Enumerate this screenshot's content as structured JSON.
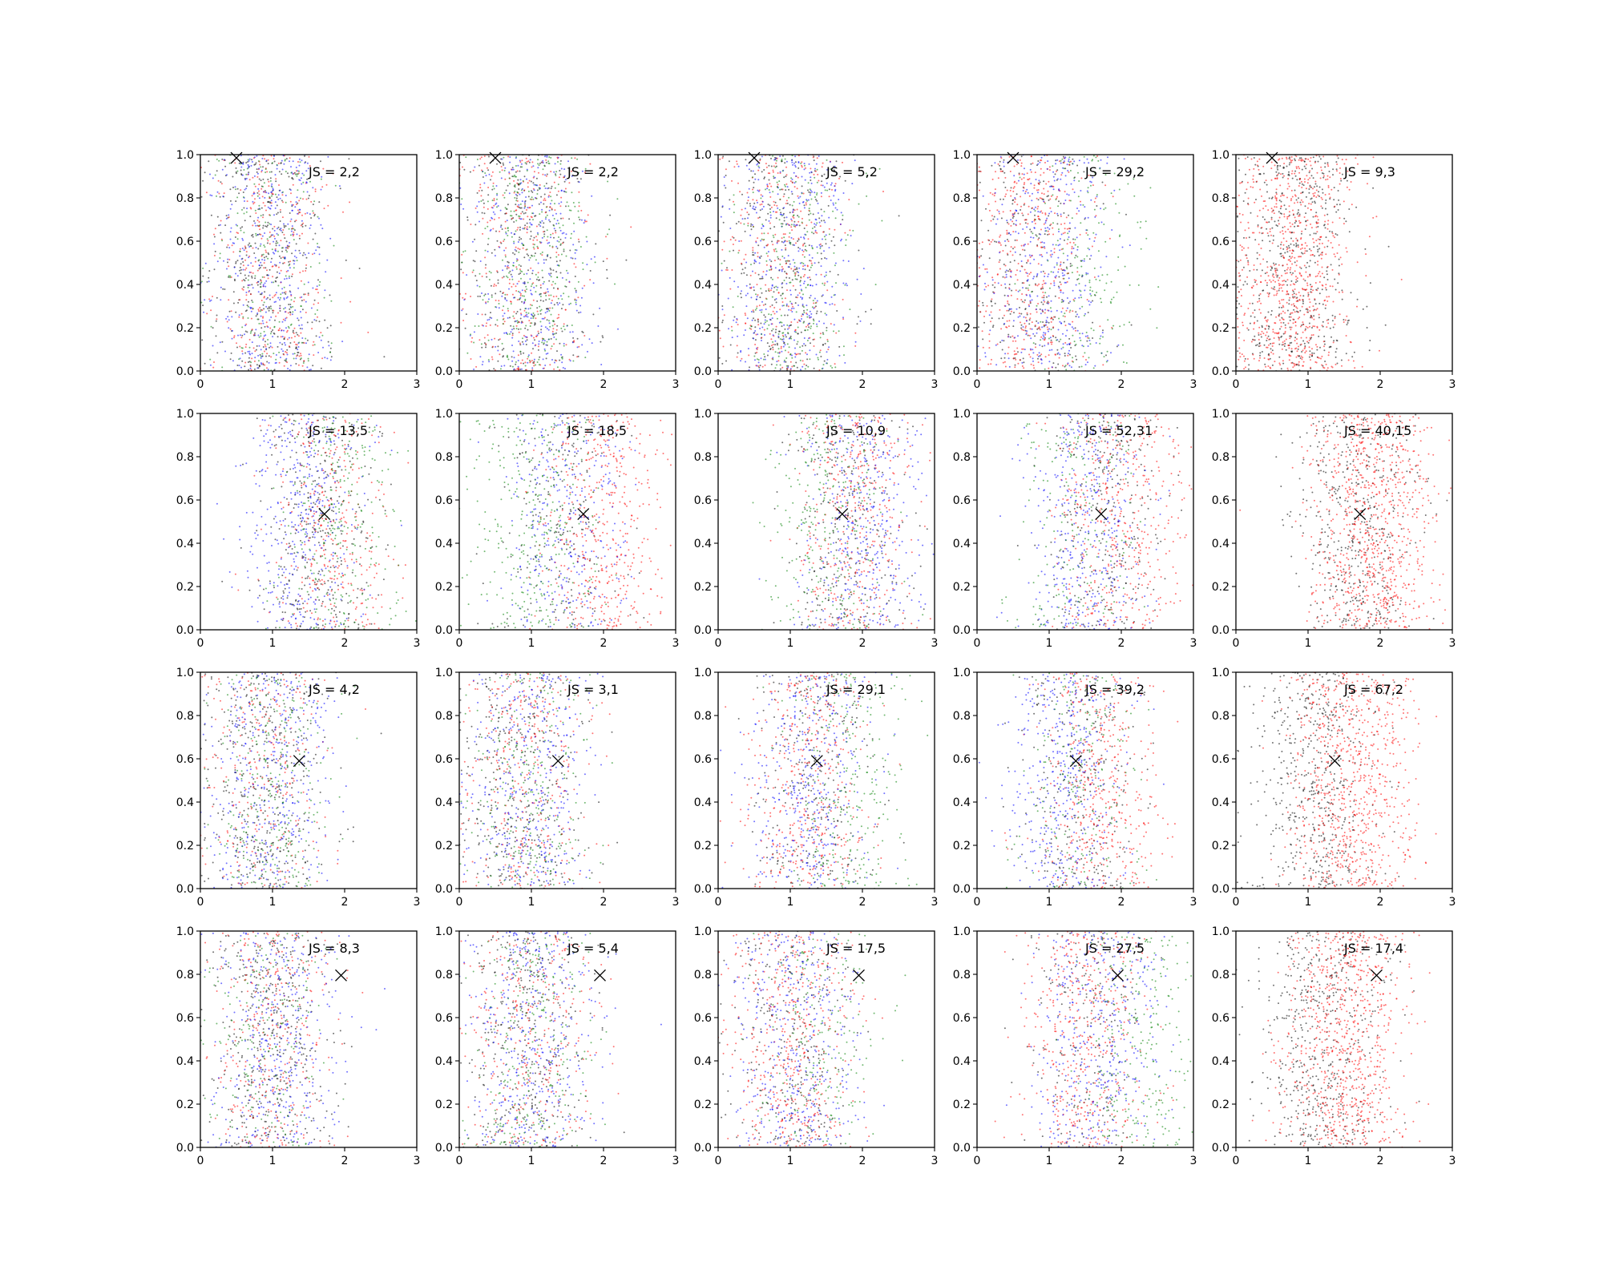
{
  "chart_data": {
    "type": "scatter",
    "rows": 4,
    "cols": 5,
    "xlim": [
      0,
      3
    ],
    "ylim": [
      0,
      1
    ],
    "xticks": [
      "0",
      "1",
      "2",
      "3"
    ],
    "yticks": [
      "0.0",
      "0.2",
      "0.4",
      "0.6",
      "0.8",
      "1.0"
    ],
    "grid": false,
    "legend": "none",
    "series_colors": {
      "black": "#000000",
      "red": "#ff0000",
      "blue": "#0000ff",
      "green": "#008000"
    },
    "marker_color": "#000000",
    "panels": [
      {
        "label": "JS = 2,2",
        "marker": [
          0.5,
          0.985
        ],
        "x_center": [
          0.95,
          0.95,
          0.95,
          0.95
        ],
        "weights": [
          0.3,
          0.25,
          0.3,
          0.15
        ]
      },
      {
        "label": "JS = 2,2",
        "marker": [
          0.5,
          0.985
        ],
        "x_center": [
          0.95,
          0.95,
          1.0,
          1.0
        ],
        "weights": [
          0.25,
          0.25,
          0.25,
          0.25
        ]
      },
      {
        "label": "JS = 5,2",
        "marker": [
          0.5,
          0.985
        ],
        "x_center": [
          0.9,
          0.9,
          1.0,
          1.1
        ],
        "weights": [
          0.25,
          0.25,
          0.3,
          0.2
        ]
      },
      {
        "label": "JS = 29,2",
        "marker": [
          0.5,
          0.985
        ],
        "x_center": [
          0.8,
          0.7,
          1.0,
          1.5
        ],
        "weights": [
          0.2,
          0.35,
          0.3,
          0.15
        ]
      },
      {
        "label": "JS = 9,3",
        "marker": [
          0.5,
          0.985
        ],
        "x_center": [
          0.8,
          0.8,
          0.8,
          0.8
        ],
        "weights": [
          0.4,
          0.6,
          0.0,
          0.0
        ]
      },
      {
        "label": "JS = 13,5",
        "marker": [
          1.72,
          0.535
        ],
        "x_center": [
          1.6,
          1.8,
          1.4,
          1.9
        ],
        "weights": [
          0.25,
          0.25,
          0.3,
          0.2
        ]
      },
      {
        "label": "JS = 18,5",
        "marker": [
          1.72,
          0.535
        ],
        "x_center": [
          1.4,
          2.0,
          1.5,
          1.0
        ],
        "weights": [
          0.15,
          0.35,
          0.25,
          0.25
        ]
      },
      {
        "label": "JS = 10,9",
        "marker": [
          1.72,
          0.535
        ],
        "x_center": [
          1.8,
          1.9,
          2.0,
          1.5
        ],
        "weights": [
          0.2,
          0.3,
          0.3,
          0.2
        ]
      },
      {
        "label": "JS = 52,31",
        "marker": [
          1.72,
          0.535
        ],
        "x_center": [
          1.8,
          2.0,
          1.5,
          1.3
        ],
        "weights": [
          0.2,
          0.35,
          0.3,
          0.15
        ]
      },
      {
        "label": "JS = 40,15",
        "marker": [
          1.72,
          0.535
        ],
        "x_center": [
          1.7,
          1.9,
          1.9,
          1.9
        ],
        "weights": [
          0.35,
          0.65,
          0.0,
          0.0
        ]
      },
      {
        "label": "JS = 4,2",
        "marker": [
          1.37,
          0.59
        ],
        "x_center": [
          0.9,
          0.9,
          1.0,
          1.0
        ],
        "weights": [
          0.3,
          0.2,
          0.3,
          0.2
        ]
      },
      {
        "label": "JS = 3,1",
        "marker": [
          1.37,
          0.59
        ],
        "x_center": [
          0.85,
          0.9,
          0.95,
          1.0
        ],
        "weights": [
          0.25,
          0.25,
          0.3,
          0.2
        ]
      },
      {
        "label": "JS = 29,1",
        "marker": [
          1.37,
          0.59
        ],
        "x_center": [
          1.3,
          1.2,
          1.3,
          1.8
        ],
        "weights": [
          0.2,
          0.3,
          0.3,
          0.2
        ]
      },
      {
        "label": "JS = 39,2",
        "marker": [
          1.37,
          0.59
        ],
        "x_center": [
          1.4,
          1.7,
          1.2,
          1.4
        ],
        "weights": [
          0.2,
          0.35,
          0.3,
          0.15
        ]
      },
      {
        "label": "JS = 67,2",
        "marker": [
          1.37,
          0.59
        ],
        "x_center": [
          1.1,
          1.6,
          1.6,
          1.6
        ],
        "weights": [
          0.4,
          0.6,
          0.0,
          0.0
        ]
      },
      {
        "label": "JS = 8,3",
        "marker": [
          1.95,
          0.795
        ],
        "x_center": [
          1.0,
          1.0,
          1.05,
          0.9
        ],
        "weights": [
          0.3,
          0.25,
          0.3,
          0.15
        ]
      },
      {
        "label": "JS = 5,4",
        "marker": [
          1.95,
          0.795
        ],
        "x_center": [
          0.95,
          1.0,
          1.0,
          1.0
        ],
        "weights": [
          0.25,
          0.25,
          0.3,
          0.2
        ]
      },
      {
        "label": "JS = 17,5",
        "marker": [
          1.95,
          0.795
        ],
        "x_center": [
          1.0,
          1.05,
          1.1,
          1.4
        ],
        "weights": [
          0.2,
          0.35,
          0.3,
          0.15
        ]
      },
      {
        "label": "JS = 27,5",
        "marker": [
          1.95,
          0.795
        ],
        "x_center": [
          1.5,
          1.5,
          1.7,
          2.3
        ],
        "weights": [
          0.15,
          0.35,
          0.3,
          0.2
        ]
      },
      {
        "label": "JS = 17,4",
        "marker": [
          1.95,
          0.795
        ],
        "x_center": [
          1.2,
          1.5,
          1.5,
          1.5
        ],
        "weights": [
          0.4,
          0.6,
          0.0,
          0.0
        ]
      }
    ]
  }
}
